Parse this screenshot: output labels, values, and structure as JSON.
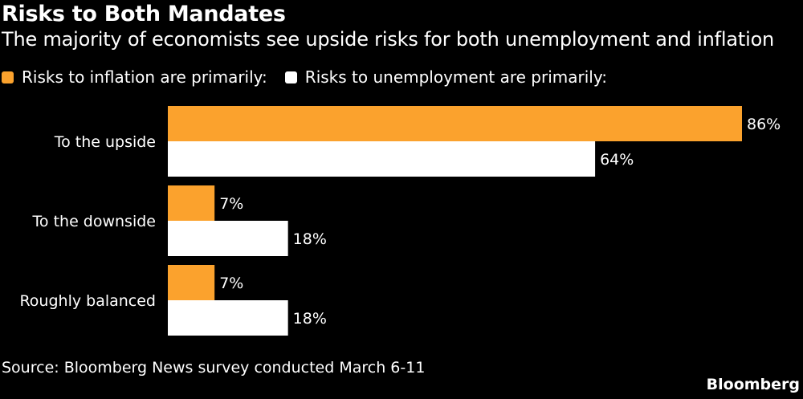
{
  "title": "Risks to Both Mandates",
  "subtitle": "The majority of economists see upside risks for both unemployment and inflation",
  "source": "Source: Bloomberg News survey conducted March 6-11",
  "brand": "Bloomberg",
  "colors": {
    "inflation": "#FBA22D",
    "unemployment": "#FFFFFF",
    "background": "#000000"
  },
  "chart_data": {
    "type": "bar",
    "orientation": "horizontal",
    "title": "Risks to Both Mandates",
    "categories": [
      "To the upside",
      "To the downside",
      "Roughly balanced"
    ],
    "series": [
      {
        "name": "Risks to inflation are primarily:",
        "values": [
          86,
          7,
          7
        ],
        "labels": [
          "86%",
          "7%",
          "7%"
        ]
      },
      {
        "name": "Risks to unemployment are primarily:",
        "values": [
          64,
          18,
          18
        ],
        "labels": [
          "64%",
          "18%",
          "18%"
        ]
      }
    ],
    "xlim": [
      0,
      86
    ],
    "xlabel": "",
    "ylabel": "",
    "legend": "top-left",
    "grid": false
  }
}
